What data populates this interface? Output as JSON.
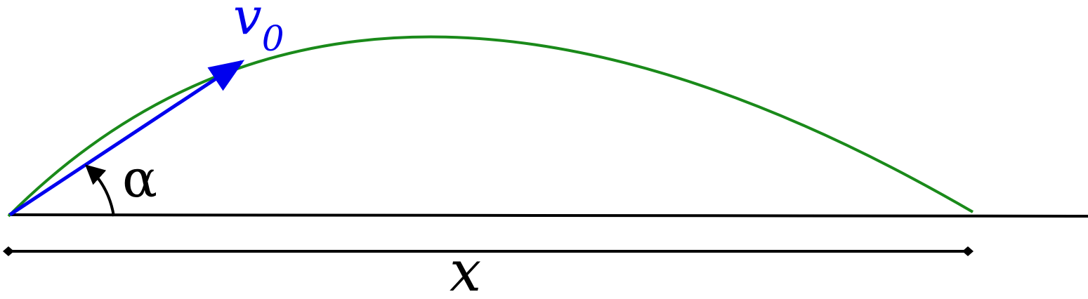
{
  "diagram": {
    "velocity_label": "v",
    "velocity_subscript": "0",
    "angle_label": "α",
    "distance_label": "x",
    "colors": {
      "trajectory": "#1a8a1a",
      "velocity": "#0000ee",
      "ground": "#000000",
      "angle_arc": "#000000",
      "distance_marker": "#000000",
      "background": "#ffffff"
    }
  }
}
